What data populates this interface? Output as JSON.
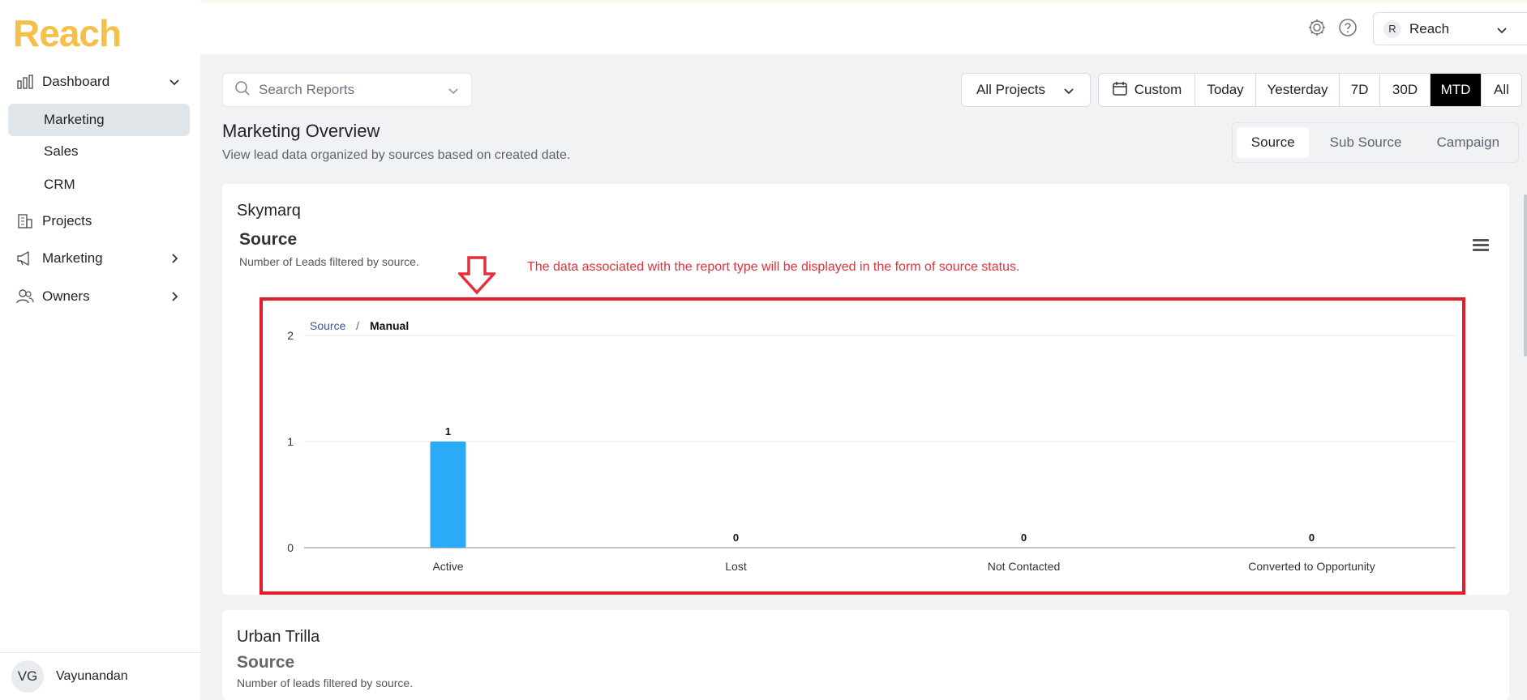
{
  "app": {
    "logo": "Reach"
  },
  "sidebar": {
    "items": [
      {
        "label": "Dashboard",
        "icon": "bar-chart-icon",
        "expanded": true
      },
      {
        "label": "Marketing",
        "sub": true,
        "active": true
      },
      {
        "label": "Sales",
        "sub": true
      },
      {
        "label": "CRM",
        "sub": true
      },
      {
        "label": "Projects",
        "icon": "building-icon"
      },
      {
        "label": "Marketing",
        "icon": "megaphone-icon",
        "chevron": "right"
      },
      {
        "label": "Owners",
        "icon": "users-icon",
        "chevron": "right"
      }
    ],
    "user": {
      "initials": "VG",
      "name": "Vayunandan"
    }
  },
  "header": {
    "workspace": {
      "badge": "R",
      "name": "Reach"
    }
  },
  "toolbar": {
    "search_placeholder": "Search Reports",
    "project_select": "All Projects",
    "date_buttons": [
      "Custom",
      "Today",
      "Yesterday",
      "7D",
      "30D",
      "MTD",
      "All"
    ],
    "date_active": "MTD"
  },
  "page": {
    "title": "Marketing Overview",
    "subtitle": "View lead data organized by sources based on created date.",
    "view_tabs": [
      "Source",
      "Sub Source",
      "Campaign"
    ],
    "view_active": "Source"
  },
  "annotation": "The data associated with the report type will be displayed in the form of source status.",
  "cards": [
    {
      "project": "Skymarq",
      "chart_title": "Source",
      "chart_subtitle": "Number of Leads filtered by source.",
      "breadcrumb": {
        "root": "Source",
        "separator": "/",
        "current": "Manual"
      }
    },
    {
      "project": "Urban Trilla",
      "chart_title": "Source",
      "chart_subtitle": "Number of leads filtered by source."
    }
  ],
  "chart_data": {
    "type": "bar",
    "categories": [
      "Active",
      "Lost",
      "Not Contacted",
      "Converted to Opportunity"
    ],
    "values": [
      1,
      0,
      0,
      0
    ],
    "yticks": [
      "0",
      "1",
      "2"
    ],
    "ylim": [
      0,
      2
    ],
    "title": "Source",
    "xlabel": "",
    "ylabel": "",
    "grid": true,
    "bar_color": "#2aaaf7"
  },
  "colors": {
    "accent": "#f5c04a",
    "highlight": "#e01f2b",
    "bar": "#2aaaf7"
  }
}
